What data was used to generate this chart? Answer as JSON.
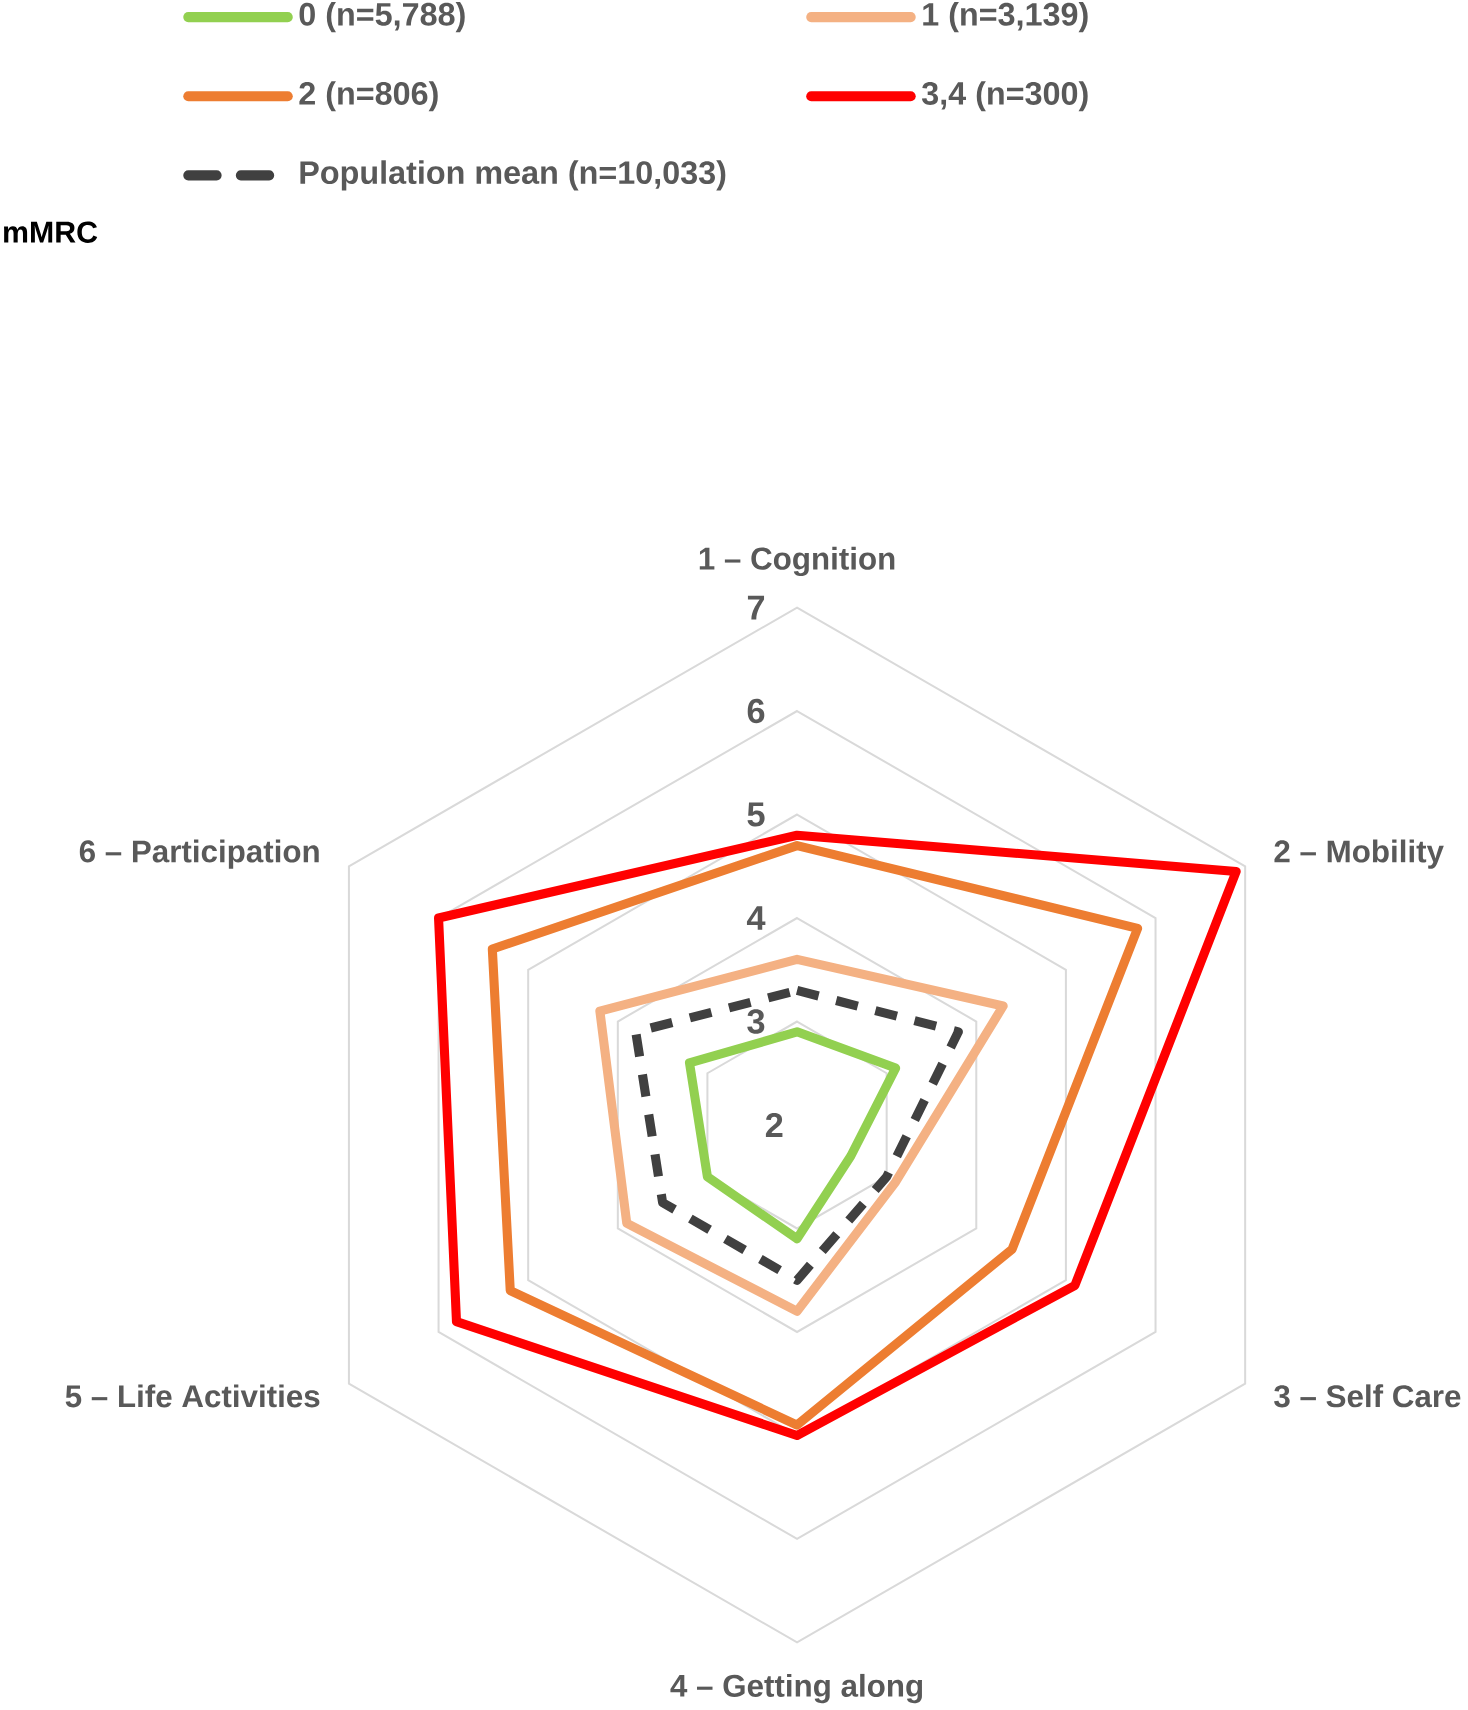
{
  "chart_data": {
    "type": "radar",
    "legend_title": "mMRC",
    "categories": [
      "1 – Cognition",
      "2 – Mobility",
      "3 – Self Care",
      "4 – Getting along",
      "5 – Life Activities",
      "6 – Participation"
    ],
    "series": [
      {
        "name": "0 (n=5,788)",
        "color": "#92d050",
        "values": [
          2.9,
          3.1,
          2.6,
          3.1,
          3.0,
          3.2
        ]
      },
      {
        "name": "1 (n=3,139)",
        "color": "#f4b183",
        "values": [
          3.6,
          4.3,
          3.1,
          3.8,
          3.9,
          4.2
        ]
      },
      {
        "name": "2 (n=806)",
        "color": "#ed7d31",
        "values": [
          4.7,
          5.8,
          4.4,
          4.9,
          5.2,
          5.4
        ]
      },
      {
        "name": "3,4 (n=300)",
        "color": "#ff0000",
        "values": [
          4.8,
          6.9,
          5.1,
          5.0,
          5.8,
          6.0
        ]
      },
      {
        "name": "Population mean (n=10,033)",
        "color": "#404040",
        "line_style": "dashed",
        "values": [
          3.3,
          3.8,
          3.0,
          3.5,
          3.5,
          3.8
        ]
      }
    ],
    "ylim": [
      2,
      7
    ],
    "yticks": [
      2,
      3,
      4,
      5,
      6,
      7
    ],
    "grid": true,
    "legend": "top",
    "marker": "none",
    "line_style": "solid"
  }
}
